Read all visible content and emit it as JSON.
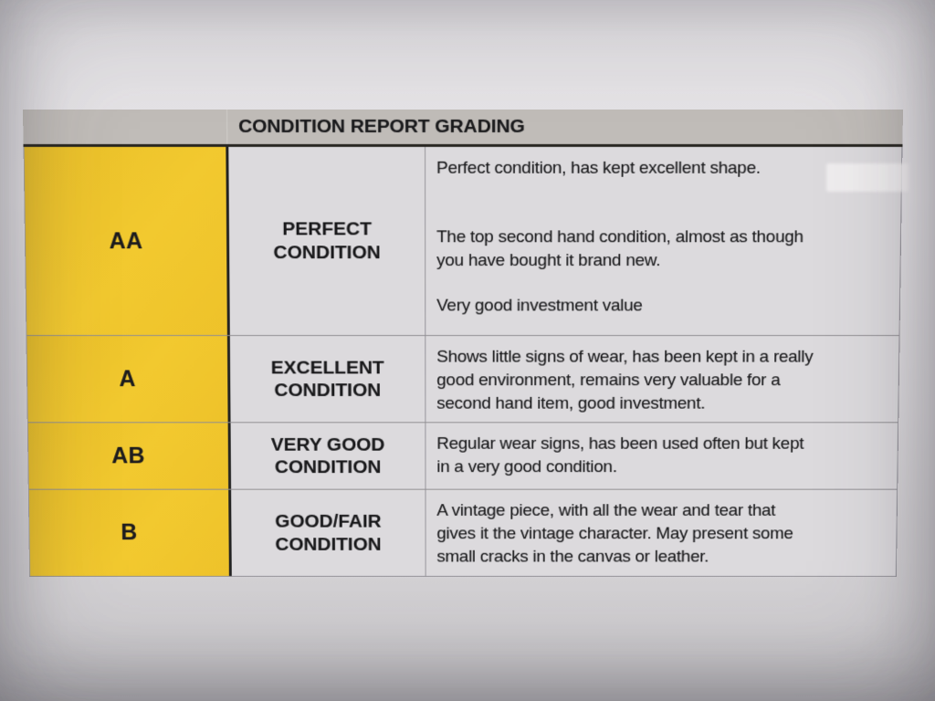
{
  "document": {
    "table": {
      "header": {
        "grade_column_label": "",
        "title": "CONDITION REPORT GRADING"
      },
      "rows": [
        {
          "grade": "AA",
          "condition": "PERFECT\nCONDITION",
          "description_paragraphs": [
            "Perfect condition, has kept excellent shape.",
            "The top second hand condition, almost as though\nyou have bought it brand new.",
            "Very good investment value"
          ]
        },
        {
          "grade": "A",
          "condition": "EXCELLENT\nCONDITION",
          "description_paragraphs": [
            "Shows little signs of wear, has been kept in a really\ngood environment, remains very valuable for a\nsecond hand item, good investment."
          ]
        },
        {
          "grade": "AB",
          "condition": "VERY GOOD\nCONDITION",
          "description_paragraphs": [
            "Regular wear signs, has been used often but kept\nin a very good condition."
          ]
        },
        {
          "grade": "B",
          "condition": "GOOD/FAIR\nCONDITION",
          "description_paragraphs": [
            "A vintage piece, with all the wear and tear that\ngives it the vintage character. May present some\nsmall cracks in the canvas or leather."
          ]
        }
      ]
    }
  },
  "colors": {
    "grade_yellow": "#e9bf29",
    "header_gray": "#c0bcb8",
    "paper": "#dcdadd",
    "ink": "#19191b"
  }
}
